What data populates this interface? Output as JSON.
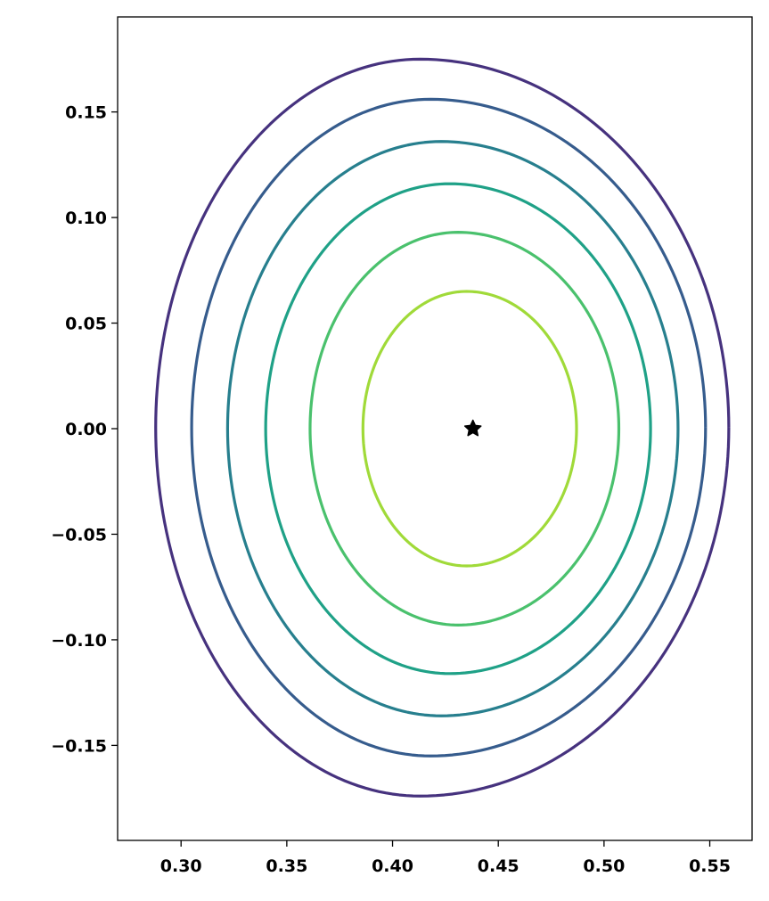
{
  "chart_data": {
    "type": "contour",
    "xlim": [
      0.27,
      0.57
    ],
    "ylim": [
      -0.195,
      0.195
    ],
    "x_ticks": [
      0.3,
      0.35,
      0.4,
      0.45,
      0.5,
      0.55
    ],
    "x_tick_labels": [
      "0.30",
      "0.35",
      "0.40",
      "0.45",
      "0.50",
      "0.55"
    ],
    "y_ticks": [
      0.15,
      0.1,
      0.05,
      0.0,
      -0.05,
      -0.1,
      -0.15
    ],
    "y_tick_labels": [
      "0.15",
      "0.10",
      "0.05",
      "0.00",
      "−0.05",
      "−0.10",
      "−0.15"
    ],
    "grid": false,
    "contours": [
      {
        "x_left": 0.288,
        "x_right": 0.559,
        "y_top": 0.175,
        "y_bottom": -0.174,
        "x_at_top": 0.413,
        "color": "#46327e"
      },
      {
        "x_left": 0.305,
        "x_right": 0.548,
        "y_top": 0.156,
        "y_bottom": -0.155,
        "x_at_top": 0.418,
        "color": "#365c8d"
      },
      {
        "x_left": 0.322,
        "x_right": 0.535,
        "y_top": 0.136,
        "y_bottom": -0.136,
        "x_at_top": 0.423,
        "color": "#277f8e"
      },
      {
        "x_left": 0.34,
        "x_right": 0.522,
        "y_top": 0.116,
        "y_bottom": -0.116,
        "x_at_top": 0.427,
        "color": "#1fa187"
      },
      {
        "x_left": 0.361,
        "x_right": 0.507,
        "y_top": 0.093,
        "y_bottom": -0.093,
        "x_at_top": 0.431,
        "color": "#4ac16d"
      },
      {
        "x_left": 0.386,
        "x_right": 0.487,
        "y_top": 0.065,
        "y_bottom": -0.065,
        "x_at_top": 0.435,
        "color": "#a0da39"
      }
    ],
    "marker": {
      "x": 0.438,
      "y": 0.0,
      "symbol": "star",
      "color": "#000000"
    }
  }
}
